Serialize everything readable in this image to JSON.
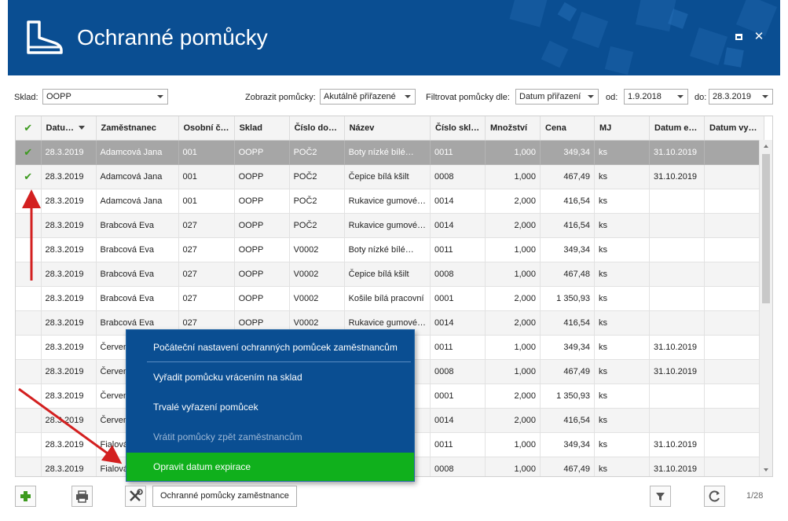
{
  "window": {
    "title": "Ochranné pomůcky",
    "header_color": "#0a4e92"
  },
  "filters": {
    "sklad_label": "Sklad:",
    "sklad_value": "OOPP",
    "zobrazit_label": "Zobrazit pomůcky:",
    "zobrazit_value": "Akutálně přiřazené",
    "filtrovat_label": "Filtrovat pomůcky dle:",
    "filtrovat_value": "Datum přiřazení",
    "od_label": "od:",
    "od_value": "1.9.2018",
    "do_label": "do:",
    "do_value": "28.3.2019"
  },
  "grid": {
    "columns": [
      "✔",
      "Datu…",
      "Zaměstnanec",
      "Osobní č…",
      "Sklad",
      "Číslo do…",
      "Název",
      "Číslo skl…",
      "Množství",
      "Cena",
      "MJ",
      "Datum e…",
      "Datum vy…"
    ],
    "rows": [
      {
        "checked": "✔",
        "cells": [
          "28.3.2019",
          "Adamcová Jana",
          "001",
          "OOPP",
          "POČ2",
          "Boty nízké bílé…",
          "0011",
          "1,000",
          "349,34",
          "ks",
          "31.10.2019",
          ""
        ]
      },
      {
        "checked": "✔",
        "cells": [
          "28.3.2019",
          "Adamcová Jana",
          "001",
          "OOPP",
          "POČ2",
          "Čepice bílá kšilt",
          "0008",
          "1,000",
          "467,49",
          "ks",
          "31.10.2019",
          ""
        ]
      },
      {
        "checked": "",
        "cells": [
          "28.3.2019",
          "Adamcová Jana",
          "001",
          "OOPP",
          "POČ2",
          "Rukavice gumové…",
          "0014",
          "2,000",
          "416,54",
          "ks",
          "",
          ""
        ]
      },
      {
        "checked": "",
        "cells": [
          "28.3.2019",
          "Brabcová Eva",
          "027",
          "OOPP",
          "POČ2",
          "Rukavice gumové…",
          "0014",
          "2,000",
          "416,54",
          "ks",
          "",
          ""
        ]
      },
      {
        "checked": "",
        "cells": [
          "28.3.2019",
          "Brabcová Eva",
          "027",
          "OOPP",
          "V0002",
          "Boty nízké bílé…",
          "0011",
          "1,000",
          "349,34",
          "ks",
          "",
          ""
        ]
      },
      {
        "checked": "",
        "cells": [
          "28.3.2019",
          "Brabcová Eva",
          "027",
          "OOPP",
          "V0002",
          "Čepice bílá kšilt",
          "0008",
          "1,000",
          "467,48",
          "ks",
          "",
          ""
        ]
      },
      {
        "checked": "",
        "cells": [
          "28.3.2019",
          "Brabcová Eva",
          "027",
          "OOPP",
          "V0002",
          "Košile bílá pracovní",
          "0001",
          "2,000",
          "1 350,93",
          "ks",
          "",
          ""
        ]
      },
      {
        "checked": "",
        "cells": [
          "28.3.2019",
          "Brabcová Eva",
          "027",
          "OOPP",
          "V0002",
          "Rukavice gumové…",
          "0014",
          "2,000",
          "416,54",
          "ks",
          "",
          ""
        ]
      },
      {
        "checked": "",
        "cells": [
          "28.3.2019",
          "Červen",
          "",
          "",
          "",
          "",
          "0011",
          "1,000",
          "349,34",
          "ks",
          "31.10.2019",
          ""
        ]
      },
      {
        "checked": "",
        "cells": [
          "28.3.2019",
          "Červen",
          "",
          "",
          "",
          "",
          "0008",
          "1,000",
          "467,49",
          "ks",
          "31.10.2019",
          ""
        ]
      },
      {
        "checked": "",
        "cells": [
          "28.3.2019",
          "Červen",
          "",
          "",
          "",
          "",
          "0001",
          "2,000",
          "1 350,93",
          "ks",
          "",
          ""
        ]
      },
      {
        "checked": "",
        "cells": [
          "28.3.2019",
          "Červen",
          "",
          "",
          "",
          "",
          "0014",
          "2,000",
          "416,54",
          "ks",
          "",
          ""
        ]
      },
      {
        "checked": "",
        "cells": [
          "28.3.2019",
          "Fialová",
          "",
          "",
          "",
          "",
          "0011",
          "1,000",
          "349,34",
          "ks",
          "31.10.2019",
          ""
        ]
      },
      {
        "checked": "",
        "cells": [
          "28.3.2019",
          "Fialová",
          "",
          "",
          "",
          "",
          "0008",
          "1,000",
          "467,49",
          "ks",
          "31.10.2019",
          ""
        ]
      }
    ]
  },
  "menu": {
    "items": [
      "Počáteční nastavení ochranných pomůcek zaměstnancům",
      "Vyřadit pomůcku vrácením na sklad",
      "Trvalé vyřazení pomůcek",
      "Vrátit pomůcky zpět zaměstnancům",
      "Opravit datum expirace"
    ],
    "active_color": "#10b01c"
  },
  "toolbar": {
    "add_icon": "plus-icon",
    "print_icon": "printer-icon",
    "tools_icon": "tools-icon",
    "employee_button": "Ochranné pomůcky zaměstnance",
    "filter_icon": "filter-icon",
    "refresh_icon": "refresh-icon",
    "pager": "1/28"
  }
}
